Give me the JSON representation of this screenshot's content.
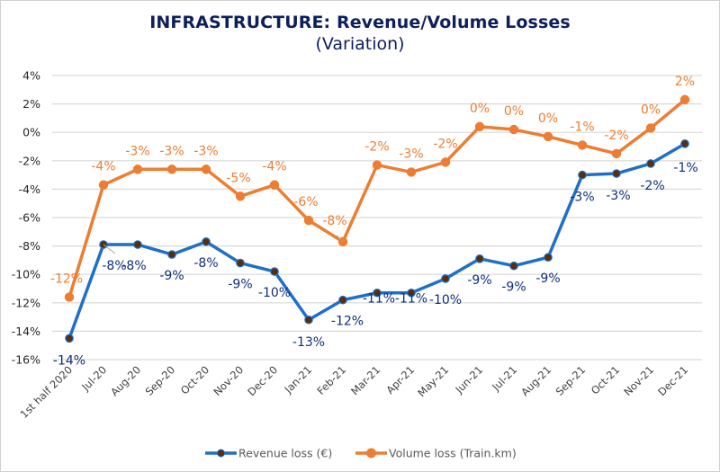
{
  "chart_data": {
    "type": "line",
    "title": "INFRASTRUCTURE: Revenue/Volume Losses",
    "subtitle": "(Variation)",
    "xlabel": "",
    "ylabel": "",
    "ylim": [
      -16,
      4
    ],
    "yticks": [
      4,
      2,
      0,
      -2,
      -4,
      -6,
      -8,
      -10,
      -12,
      -14,
      -16
    ],
    "ytick_labels": [
      "4%",
      "2%",
      "0%",
      "-2%",
      "-4%",
      "-6%",
      "-8%",
      "-10%",
      "-12%",
      "-14%",
      "-16%"
    ],
    "grid": true,
    "legend_position": "bottom",
    "categories": [
      "1st half 2020",
      "Jul-20",
      "Aug-20",
      "Sep-20",
      "Oct-20",
      "Nov-20",
      "Dec-20",
      "Jan-21",
      "Feb-21",
      "Mar-21",
      "Apr-21",
      "May-21",
      "Jun-21",
      "Jul-21",
      "Aug-21",
      "Sep-21",
      "Oct-21",
      "Nov-21",
      "Dec-21"
    ],
    "series": [
      {
        "name": "Revenue loss (€)",
        "color": "#1f6fc8",
        "marker_color": "#5a2d0c",
        "label_color": "#0d2f7a",
        "values": [
          -14.5,
          -7.9,
          -7.9,
          -8.6,
          -7.7,
          -9.2,
          -9.8,
          -13.2,
          -11.8,
          -11.3,
          -11.3,
          -10.3,
          -8.9,
          -9.4,
          -8.8,
          -3.0,
          -2.9,
          -2.2,
          -0.8
        ],
        "labels": [
          "-14%",
          "-8%",
          "-8%",
          "-9%",
          "-8%",
          "-9%",
          "-10%",
          "-13%",
          "-12%",
          "-11%",
          "-11%",
          "-10%",
          "-9%",
          "-9%",
          "-9%",
          "-3%",
          "-3%",
          "-2%",
          "-1%"
        ]
      },
      {
        "name": "Volume loss (Train.km)",
        "color": "#ed7d31",
        "marker_color": "#ed7d31",
        "label_color": "#ed7d31",
        "values": [
          -11.6,
          -3.7,
          -2.6,
          -2.6,
          -2.6,
          -4.5,
          -3.7,
          -6.2,
          -7.7,
          -2.3,
          -2.8,
          -2.1,
          0.4,
          0.2,
          -0.3,
          -0.9,
          -1.5,
          0.3,
          2.3
        ],
        "labels": [
          "-12%",
          "-4%",
          "-3%",
          "-3%",
          "-3%",
          "-5%",
          "-4%",
          "-6%",
          "-8%",
          "-2%",
          "-3%",
          "-2%",
          "0%",
          "0%",
          "0%",
          "-1%",
          "-2%",
          "0%",
          "2%"
        ]
      }
    ]
  }
}
